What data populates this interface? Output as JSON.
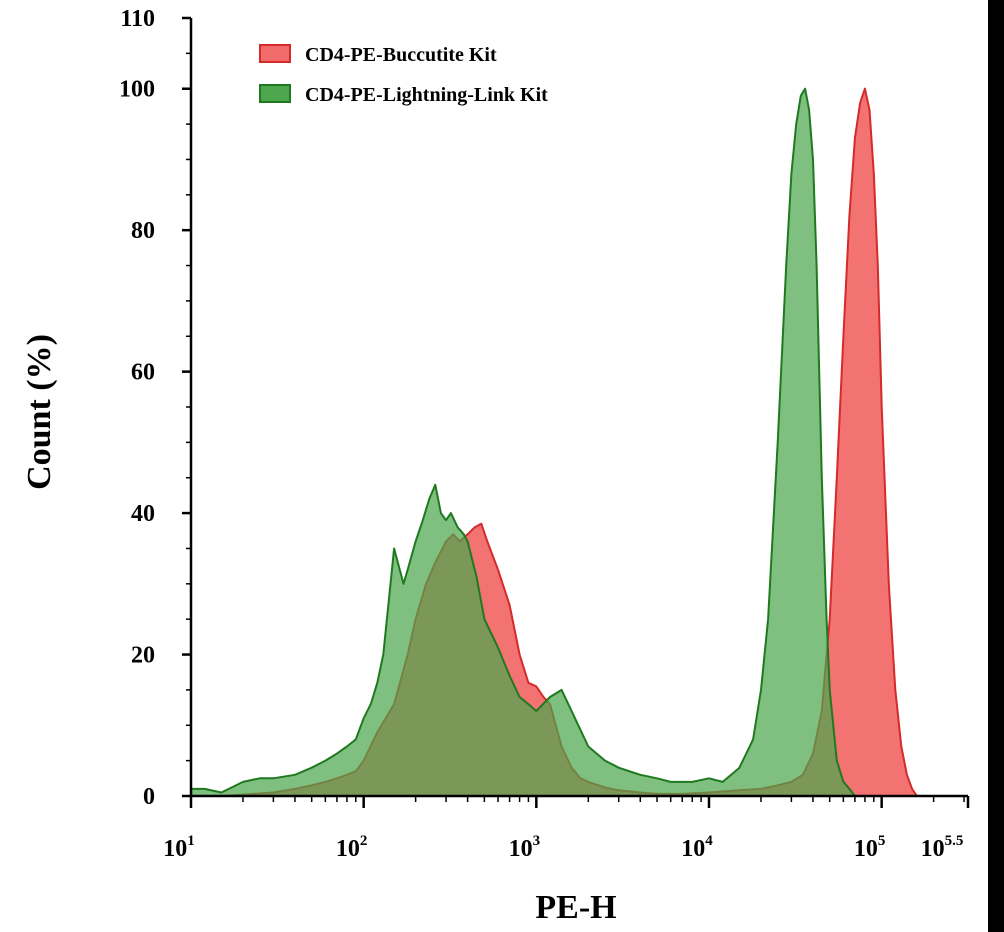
{
  "chart_data": {
    "type": "area",
    "xlabel": "PE-H",
    "ylabel": "Count (%)",
    "x_scale": "log10",
    "xlim": [
      10,
      316228
    ],
    "ylim": [
      0,
      110
    ],
    "yticks": [
      {
        "value": 0,
        "label": "0"
      },
      {
        "value": 20,
        "label": "20"
      },
      {
        "value": 40,
        "label": "40"
      },
      {
        "value": 60,
        "label": "60"
      },
      {
        "value": 80,
        "label": "80"
      },
      {
        "value": 100,
        "label": "100"
      },
      {
        "value": 110,
        "label": "110"
      }
    ],
    "xticks": [
      {
        "value": 10,
        "base": "10",
        "exp": "1"
      },
      {
        "value": 100,
        "base": "10",
        "exp": "2"
      },
      {
        "value": 1000,
        "base": "10",
        "exp": "3"
      },
      {
        "value": 10000,
        "base": "10",
        "exp": "4"
      },
      {
        "value": 100000,
        "base": "10",
        "exp": "5"
      },
      {
        "value": 316228,
        "base": "10",
        "exp": "5.5"
      }
    ],
    "legend_position": "top-left",
    "grid": false,
    "series": [
      {
        "name": "CD4-PE-Buccutite Kit",
        "fill": "#f26b6b",
        "stroke": "#d42a2a",
        "x": [
          10,
          15,
          20,
          30,
          40,
          50,
          60,
          70,
          80,
          90,
          100,
          120,
          150,
          180,
          200,
          230,
          260,
          300,
          330,
          360,
          400,
          440,
          480,
          520,
          600,
          700,
          800,
          900,
          1000,
          1100,
          1200,
          1400,
          1600,
          1800,
          2000,
          2500,
          3000,
          4000,
          5000,
          7000,
          10000,
          15000,
          20000,
          25000,
          30000,
          35000,
          40000,
          45000,
          50000,
          55000,
          60000,
          65000,
          70000,
          75000,
          80000,
          85000,
          90000,
          95000,
          100000,
          110000,
          120000,
          130000,
          140000,
          150000,
          160000
        ],
        "values": [
          0,
          0,
          0.2,
          0.5,
          1,
          1.5,
          2,
          2.5,
          3,
          3.5,
          5,
          9,
          13,
          20,
          25,
          30,
          33,
          36,
          37,
          36,
          37,
          38,
          38.5,
          36,
          32,
          27,
          20,
          16,
          15.5,
          14,
          13,
          7,
          4,
          2.5,
          2,
          1.2,
          0.8,
          0.5,
          0.3,
          0.3,
          0.5,
          0.8,
          1,
          1.5,
          2,
          3,
          6,
          12,
          25,
          45,
          65,
          82,
          93,
          98,
          100,
          97,
          88,
          75,
          55,
          30,
          15,
          7,
          3,
          1,
          0
        ]
      },
      {
        "name": "CD4-PE-Lightning-Link Kit",
        "fill": "#4ea64e",
        "stroke": "#1f7a1f",
        "x": [
          10,
          12,
          15,
          20,
          25,
          30,
          40,
          50,
          60,
          70,
          80,
          90,
          100,
          110,
          120,
          130,
          150,
          170,
          180,
          200,
          220,
          240,
          260,
          280,
          300,
          320,
          350,
          380,
          400,
          450,
          500,
          600,
          700,
          800,
          900,
          1000,
          1200,
          1400,
          1600,
          2000,
          2500,
          3000,
          4000,
          5000,
          6000,
          8000,
          10000,
          12000,
          15000,
          18000,
          20000,
          22000,
          25000,
          28000,
          30000,
          32000,
          34000,
          36000,
          38000,
          40000,
          42000,
          45000,
          48000,
          50000,
          55000,
          60000,
          65000,
          70000
        ],
        "values": [
          1,
          1,
          0.5,
          2,
          2.5,
          2.5,
          3,
          4,
          5,
          6,
          7,
          8,
          11,
          13,
          16,
          20,
          35,
          30,
          32,
          36,
          39,
          42,
          44,
          40,
          39,
          40,
          38,
          37,
          36,
          31,
          25,
          21,
          17,
          14,
          13,
          12,
          14,
          15,
          12,
          7,
          5,
          4,
          3,
          2.5,
          2,
          2,
          2.5,
          2,
          4,
          8,
          15,
          25,
          50,
          75,
          88,
          95,
          99,
          100,
          97,
          90,
          75,
          45,
          25,
          15,
          5,
          2,
          1,
          0
        ]
      }
    ]
  }
}
